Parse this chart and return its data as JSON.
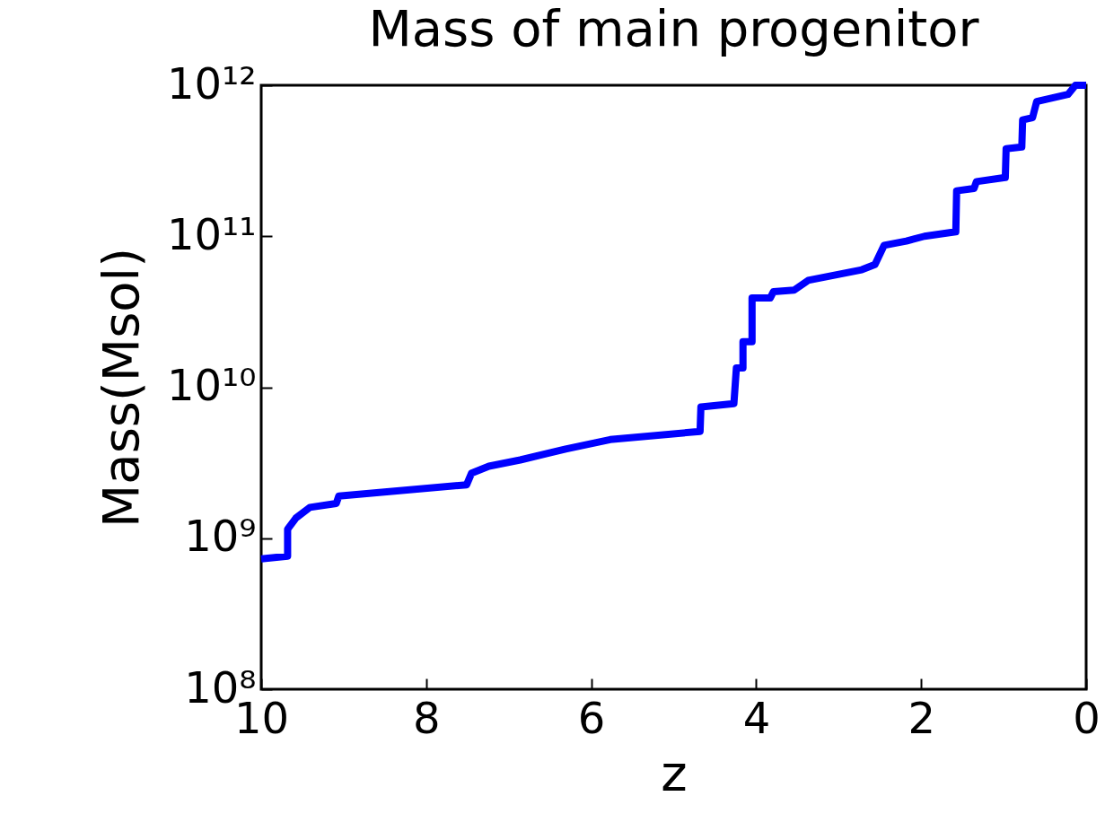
{
  "chart_data": {
    "type": "line",
    "title": "Mass of main progenitor",
    "xlabel": "z",
    "ylabel": "Mass(Msol)",
    "log": "y",
    "grid": false,
    "marker": "none",
    "line_style": "solid",
    "xlim": [
      10,
      0
    ],
    "xticks": [
      10,
      8,
      6,
      4,
      2,
      0
    ],
    "ylim": [
      100000000.0,
      1000000000000.0
    ],
    "yticks": [
      {
        "value": 100000000.0,
        "label": "10⁸"
      },
      {
        "value": 1000000000.0,
        "label": "10⁹"
      },
      {
        "value": 10000000000.0,
        "label": "10¹⁰"
      },
      {
        "value": 100000000000.0,
        "label": "10¹¹"
      },
      {
        "value": 1000000000000.0,
        "label": "10¹²"
      }
    ],
    "series": [
      {
        "color": "#0000ff",
        "x": [
          10,
          9.68,
          9.68,
          9.58,
          9.41,
          9.09,
          9.06,
          7.51,
          7.45,
          7.24,
          6.86,
          6.31,
          5.77,
          4.68,
          4.67,
          4.27,
          4.24,
          4.16,
          4.16,
          4.05,
          4.05,
          3.83,
          3.79,
          3.54,
          3.37,
          2.72,
          2.56,
          2.45,
          2.18,
          1.96,
          1.58,
          1.57,
          1.36,
          1.33,
          0.98,
          0.97,
          0.78,
          0.77,
          0.65,
          0.6,
          0.22,
          0.13,
          0
        ],
        "values": [
          730000000.0,
          760000000.0,
          1150000000.0,
          1360000000.0,
          1600000000.0,
          1700000000.0,
          1900000000.0,
          2260000000.0,
          2700000000.0,
          3000000000.0,
          3300000000.0,
          3900000000.0,
          4500000000.0,
          5100000000.0,
          7400000000.0,
          7800000000.0,
          13400000000.0,
          13400000000.0,
          20000000000.0,
          20000000000.0,
          39000000000.0,
          39000000000.0,
          43000000000.0,
          44000000000.0,
          51000000000.0,
          60000000000.0,
          65000000000.0,
          87000000000.0,
          93000000000.0,
          100000000000.0,
          107000000000.0,
          200000000000.0,
          207000000000.0,
          230000000000.0,
          245000000000.0,
          380000000000.0,
          390000000000.0,
          590000000000.0,
          610000000000.0,
          780000000000.0,
          870000000000.0,
          1000000000000.0,
          1000000000000.0
        ]
      }
    ]
  }
}
